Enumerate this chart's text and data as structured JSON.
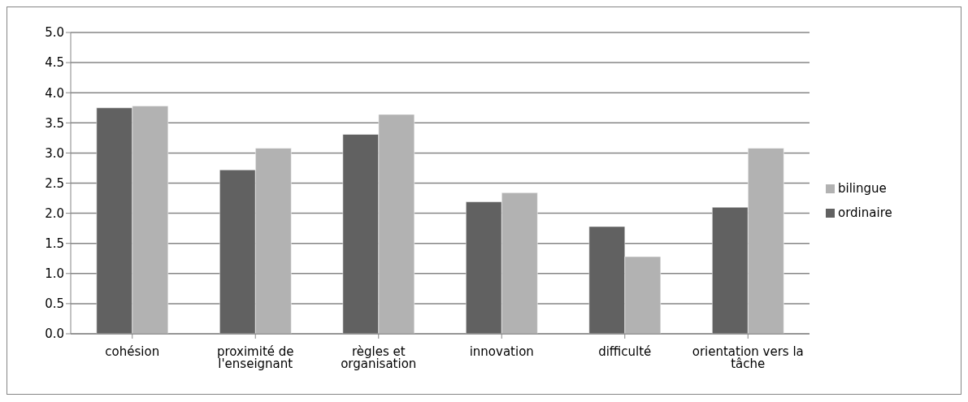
{
  "chart_data": {
    "type": "bar",
    "categories": [
      "cohésion",
      "proximité de l'enseignant",
      "règles et organisation",
      "innovation",
      "difficulté",
      "orientation vers la tâche"
    ],
    "series": [
      {
        "name": "ordinaire",
        "color": "#616161",
        "values": [
          3.75,
          2.72,
          3.31,
          2.19,
          1.78,
          2.1
        ]
      },
      {
        "name": "bilingue",
        "color": "#b2b2b2",
        "values": [
          3.78,
          3.08,
          3.64,
          2.34,
          1.28,
          3.08
        ]
      }
    ],
    "ylim": [
      0,
      5
    ],
    "yticks": [
      {
        "value": 0,
        "label": "0.0"
      },
      {
        "value": 0.5,
        "label": "0.5"
      },
      {
        "value": 1,
        "label": "1.0"
      },
      {
        "value": 1.5,
        "label": "1.5"
      },
      {
        "value": 2,
        "label": "2.0"
      },
      {
        "value": 2.5,
        "label": "2.5"
      },
      {
        "value": 3,
        "label": "3.0"
      },
      {
        "value": 3.5,
        "label": "3.5"
      },
      {
        "value": 4,
        "label": "4.0"
      },
      {
        "value": 4.5,
        "label": "4.5"
      },
      {
        "value": 5,
        "label": "5.0"
      }
    ],
    "grid": "y",
    "legend": "right"
  }
}
